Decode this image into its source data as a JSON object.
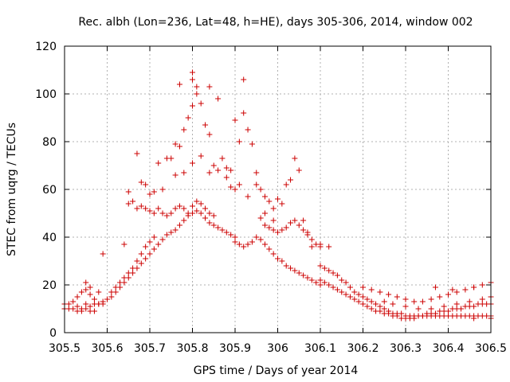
{
  "chart_data": {
    "type": "scatter",
    "title": "Rec. albh (Lon=236, Lat=48, h=HE), days 305-306, 2014, window 002",
    "xlabel": "GPS time / Days of year 2014",
    "ylabel": "STEC from uqrg / TECUs",
    "xlim": [
      305.5,
      306.5
    ],
    "ylim": [
      0,
      120
    ],
    "xticks": [
      305.5,
      305.6,
      305.7,
      305.8,
      305.9,
      306.0,
      306.1,
      306.2,
      306.3,
      306.4,
      306.5
    ],
    "xtick_labels": [
      "305.5",
      "305.6",
      "305.7",
      "305.8",
      "305.9",
      "306",
      "306.1",
      "306.2",
      "306.3",
      "306.4",
      "306.5"
    ],
    "yticks": [
      0,
      20,
      40,
      60,
      80,
      100,
      120
    ],
    "ytick_labels": [
      "0",
      "20",
      "40",
      "60",
      "80",
      "100",
      "120"
    ],
    "grid": true,
    "marker": "+",
    "color": "#cc0000",
    "series": [
      {
        "name": "STEC",
        "points": [
          [
            305.5,
            12
          ],
          [
            305.51,
            12
          ],
          [
            305.52,
            13
          ],
          [
            305.53,
            15
          ],
          [
            305.54,
            17
          ],
          [
            305.55,
            18
          ],
          [
            305.56,
            16
          ],
          [
            305.57,
            14
          ],
          [
            305.58,
            12
          ],
          [
            305.59,
            12
          ],
          [
            305.6,
            14
          ],
          [
            305.61,
            17
          ],
          [
            305.62,
            19
          ],
          [
            305.63,
            21
          ],
          [
            305.64,
            23
          ],
          [
            305.65,
            25
          ],
          [
            305.66,
            27
          ],
          [
            305.67,
            30
          ],
          [
            305.68,
            33
          ],
          [
            305.69,
            36
          ],
          [
            305.7,
            38
          ],
          [
            305.71,
            40
          ],
          [
            305.5,
            10
          ],
          [
            305.51,
            10
          ],
          [
            305.52,
            10
          ],
          [
            305.53,
            11
          ],
          [
            305.54,
            10
          ],
          [
            305.55,
            10
          ],
          [
            305.56,
            11
          ],
          [
            305.57,
            12
          ],
          [
            305.58,
            12
          ],
          [
            305.59,
            13
          ],
          [
            305.6,
            14
          ],
          [
            305.61,
            15
          ],
          [
            305.62,
            17
          ],
          [
            305.63,
            19
          ],
          [
            305.64,
            21
          ],
          [
            305.65,
            23
          ],
          [
            305.66,
            25
          ],
          [
            305.67,
            27
          ],
          [
            305.68,
            29
          ],
          [
            305.69,
            31
          ],
          [
            305.7,
            33
          ],
          [
            305.71,
            35
          ],
          [
            305.72,
            37
          ],
          [
            305.73,
            39
          ],
          [
            305.74,
            41
          ],
          [
            305.75,
            42
          ],
          [
            305.76,
            43
          ],
          [
            305.77,
            45
          ],
          [
            305.78,
            47
          ],
          [
            305.79,
            49
          ],
          [
            305.8,
            50
          ],
          [
            305.81,
            51
          ],
          [
            305.82,
            50
          ],
          [
            305.83,
            48
          ],
          [
            305.84,
            46
          ],
          [
            305.85,
            45
          ],
          [
            305.86,
            44
          ],
          [
            305.87,
            43
          ],
          [
            305.88,
            42
          ],
          [
            305.89,
            41
          ],
          [
            305.9,
            40
          ],
          [
            305.53,
            9
          ],
          [
            305.54,
            9
          ],
          [
            305.55,
            12
          ],
          [
            305.56,
            9
          ],
          [
            305.57,
            9
          ],
          [
            305.55,
            21
          ],
          [
            305.56,
            19
          ],
          [
            305.59,
            33
          ],
          [
            305.58,
            17
          ],
          [
            305.64,
            37
          ],
          [
            305.65,
            54
          ],
          [
            305.66,
            55
          ],
          [
            305.67,
            52
          ],
          [
            305.68,
            53
          ],
          [
            305.69,
            52
          ],
          [
            305.7,
            51
          ],
          [
            305.71,
            50
          ],
          [
            305.72,
            52
          ],
          [
            305.73,
            50
          ],
          [
            305.74,
            49
          ],
          [
            305.75,
            50
          ],
          [
            305.76,
            52
          ],
          [
            305.77,
            53
          ],
          [
            305.78,
            52
          ],
          [
            305.79,
            50
          ],
          [
            305.8,
            53
          ],
          [
            305.81,
            55
          ],
          [
            305.82,
            54
          ],
          [
            305.83,
            52
          ],
          [
            305.84,
            50
          ],
          [
            305.85,
            49
          ],
          [
            305.65,
            59
          ],
          [
            305.67,
            75
          ],
          [
            305.68,
            63
          ],
          [
            305.69,
            62
          ],
          [
            305.7,
            58
          ],
          [
            305.71,
            59
          ],
          [
            305.72,
            71
          ],
          [
            305.73,
            60
          ],
          [
            305.74,
            73
          ],
          [
            305.75,
            73
          ],
          [
            305.76,
            79
          ],
          [
            305.77,
            78
          ],
          [
            305.78,
            85
          ],
          [
            305.79,
            90
          ],
          [
            305.8,
            95
          ],
          [
            305.81,
            100
          ],
          [
            305.82,
            96
          ],
          [
            305.83,
            87
          ],
          [
            305.84,
            83
          ],
          [
            305.77,
            104
          ],
          [
            305.8,
            109
          ],
          [
            305.8,
            106
          ],
          [
            305.81,
            103
          ],
          [
            305.84,
            103
          ],
          [
            305.86,
            98
          ],
          [
            305.87,
            73
          ],
          [
            305.88,
            69
          ],
          [
            305.89,
            68
          ],
          [
            305.9,
            89
          ],
          [
            305.91,
            80
          ],
          [
            305.92,
            106
          ],
          [
            305.92,
            92
          ],
          [
            305.93,
            85
          ],
          [
            305.94,
            79
          ],
          [
            305.95,
            67
          ],
          [
            305.96,
            60
          ],
          [
            305.97,
            57
          ],
          [
            305.98,
            55
          ],
          [
            305.99,
            52
          ],
          [
            305.76,
            66
          ],
          [
            305.78,
            67
          ],
          [
            305.8,
            71
          ],
          [
            305.82,
            74
          ],
          [
            305.84,
            67
          ],
          [
            305.85,
            70
          ],
          [
            305.86,
            68
          ],
          [
            305.88,
            65
          ],
          [
            305.89,
            61
          ],
          [
            305.9,
            60
          ],
          [
            305.91,
            62
          ],
          [
            305.93,
            57
          ],
          [
            305.95,
            62
          ],
          [
            305.97,
            50
          ],
          [
            305.99,
            47
          ],
          [
            305.9,
            38
          ],
          [
            305.91,
            37
          ],
          [
            305.92,
            36
          ],
          [
            305.93,
            37
          ],
          [
            305.94,
            38
          ],
          [
            305.95,
            40
          ],
          [
            305.96,
            39
          ],
          [
            305.97,
            37
          ],
          [
            305.98,
            35
          ],
          [
            305.99,
            33
          ],
          [
            306.0,
            31
          ],
          [
            306.01,
            30
          ],
          [
            306.02,
            28
          ],
          [
            306.03,
            27
          ],
          [
            306.04,
            26
          ],
          [
            306.05,
            25
          ],
          [
            306.06,
            24
          ],
          [
            306.07,
            23
          ],
          [
            306.08,
            22
          ],
          [
            306.09,
            21
          ],
          [
            306.1,
            20
          ],
          [
            305.96,
            48
          ],
          [
            305.97,
            45
          ],
          [
            305.98,
            44
          ],
          [
            305.99,
            43
          ],
          [
            306.0,
            42
          ],
          [
            306.01,
            43
          ],
          [
            306.02,
            44
          ],
          [
            306.03,
            46
          ],
          [
            306.04,
            47
          ],
          [
            306.05,
            45
          ],
          [
            306.06,
            43
          ],
          [
            306.07,
            41
          ],
          [
            306.08,
            39
          ],
          [
            306.09,
            37
          ],
          [
            306.1,
            36
          ],
          [
            306.0,
            56
          ],
          [
            306.01,
            54
          ],
          [
            306.02,
            62
          ],
          [
            306.03,
            64
          ],
          [
            306.04,
            73
          ],
          [
            306.05,
            68
          ],
          [
            306.06,
            47
          ],
          [
            306.07,
            42
          ],
          [
            306.08,
            36
          ],
          [
            306.1,
            37
          ],
          [
            306.12,
            36
          ],
          [
            306.1,
            28
          ],
          [
            306.11,
            27
          ],
          [
            306.12,
            26
          ],
          [
            306.13,
            25
          ],
          [
            306.14,
            24
          ],
          [
            306.15,
            22
          ],
          [
            306.16,
            21
          ],
          [
            306.17,
            19
          ],
          [
            306.18,
            17
          ],
          [
            306.19,
            16
          ],
          [
            306.2,
            15
          ],
          [
            306.21,
            14
          ],
          [
            306.22,
            13
          ],
          [
            306.23,
            12
          ],
          [
            306.24,
            11
          ],
          [
            306.25,
            10
          ],
          [
            306.26,
            9
          ],
          [
            306.27,
            8
          ],
          [
            306.28,
            8
          ],
          [
            306.29,
            8
          ],
          [
            306.3,
            7
          ],
          [
            306.31,
            7
          ],
          [
            306.32,
            7
          ],
          [
            306.33,
            7
          ],
          [
            306.34,
            7
          ],
          [
            306.35,
            7
          ],
          [
            306.36,
            7
          ],
          [
            306.37,
            7
          ],
          [
            306.38,
            7
          ],
          [
            306.39,
            7
          ],
          [
            306.4,
            7
          ],
          [
            306.41,
            7
          ],
          [
            306.42,
            7
          ],
          [
            306.43,
            7
          ],
          [
            306.44,
            7
          ],
          [
            306.45,
            7
          ],
          [
            306.46,
            7
          ],
          [
            306.47,
            7
          ],
          [
            306.48,
            7
          ],
          [
            306.49,
            7
          ],
          [
            306.5,
            7
          ],
          [
            306.1,
            22
          ],
          [
            306.11,
            21
          ],
          [
            306.12,
            20
          ],
          [
            306.13,
            19
          ],
          [
            306.14,
            18
          ],
          [
            306.15,
            17
          ],
          [
            306.16,
            16
          ],
          [
            306.17,
            15
          ],
          [
            306.18,
            14
          ],
          [
            306.19,
            13
          ],
          [
            306.2,
            12
          ],
          [
            306.21,
            11
          ],
          [
            306.22,
            10
          ],
          [
            306.23,
            9
          ],
          [
            306.24,
            9
          ],
          [
            306.25,
            8
          ],
          [
            306.26,
            8
          ],
          [
            306.27,
            7
          ],
          [
            306.28,
            7
          ],
          [
            306.29,
            6
          ],
          [
            306.3,
            6
          ],
          [
            306.31,
            6
          ],
          [
            306.32,
            6
          ],
          [
            306.33,
            7
          ],
          [
            306.34,
            7
          ],
          [
            306.35,
            8
          ],
          [
            306.36,
            8
          ],
          [
            306.37,
            8
          ],
          [
            306.38,
            9
          ],
          [
            306.39,
            9
          ],
          [
            306.4,
            9
          ],
          [
            306.41,
            10
          ],
          [
            306.42,
            10
          ],
          [
            306.43,
            10
          ],
          [
            306.44,
            11
          ],
          [
            306.45,
            11
          ],
          [
            306.46,
            11
          ],
          [
            306.47,
            12
          ],
          [
            306.48,
            12
          ],
          [
            306.49,
            12
          ],
          [
            306.5,
            12
          ],
          [
            306.2,
            19
          ],
          [
            306.22,
            18
          ],
          [
            306.24,
            17
          ],
          [
            306.26,
            16
          ],
          [
            306.28,
            15
          ],
          [
            306.3,
            14
          ],
          [
            306.32,
            13
          ],
          [
            306.34,
            13
          ],
          [
            306.36,
            14
          ],
          [
            306.38,
            15
          ],
          [
            306.4,
            16
          ],
          [
            306.42,
            17
          ],
          [
            306.44,
            18
          ],
          [
            306.46,
            19
          ],
          [
            306.48,
            20
          ],
          [
            306.5,
            21
          ],
          [
            306.25,
            13
          ],
          [
            306.27,
            12
          ],
          [
            306.3,
            11
          ],
          [
            306.33,
            10
          ],
          [
            306.36,
            10
          ],
          [
            306.39,
            11
          ],
          [
            306.42,
            12
          ],
          [
            306.45,
            13
          ],
          [
            306.48,
            14
          ],
          [
            306.5,
            15
          ],
          [
            306.37,
            19
          ],
          [
            306.41,
            18
          ],
          [
            306.46,
            19
          ],
          [
            306.5,
            6
          ],
          [
            306.46,
            6
          ]
        ]
      }
    ]
  }
}
